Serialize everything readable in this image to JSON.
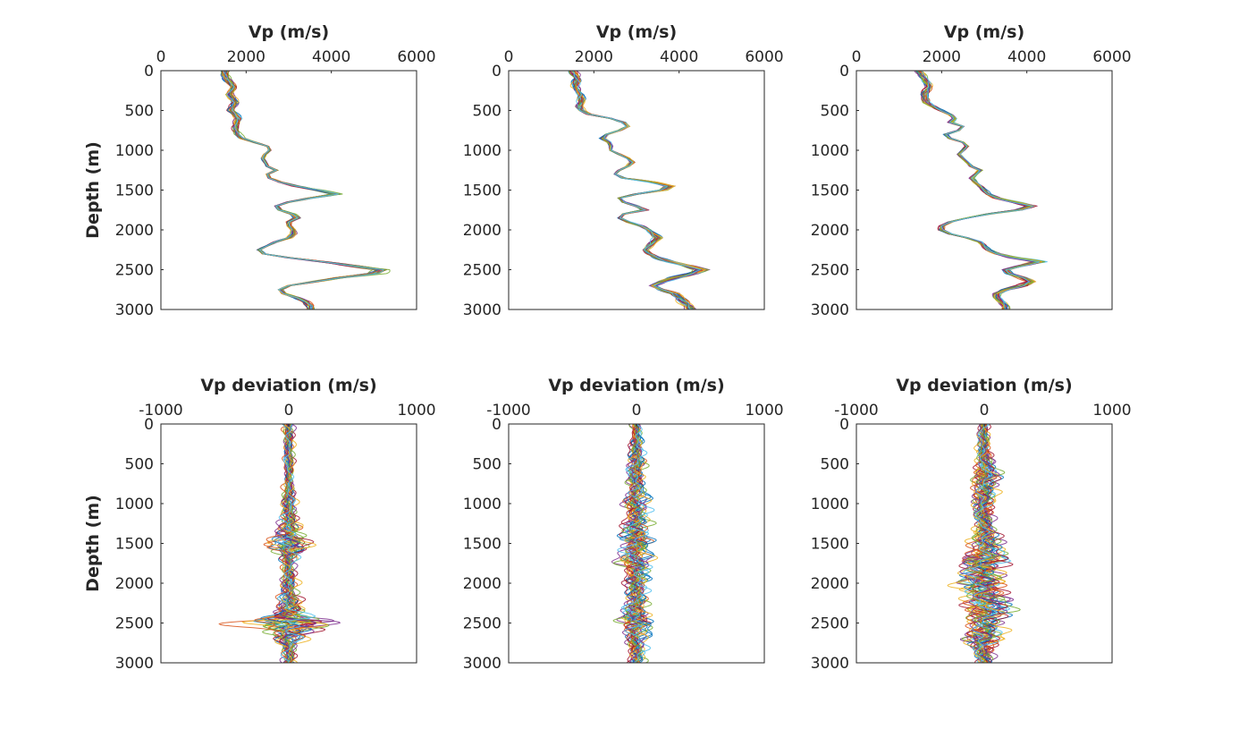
{
  "chart_data": [
    {
      "id": "vp-1",
      "type": "line",
      "orientation": "x-vs-depth",
      "title": "",
      "xlabel": "Vp (m/s)",
      "ylabel": "Depth (m)",
      "xlim": [
        0,
        6000
      ],
      "ylim": [
        0,
        3000
      ],
      "y_reversed": true,
      "x_axis_location": "top",
      "grid": false,
      "xticks": [
        0,
        2000,
        4000,
        6000
      ],
      "xtick_labels": [
        "0",
        "2000",
        "4000",
        "6000"
      ],
      "yticks": [
        0,
        500,
        1000,
        1500,
        2000,
        2500,
        3000
      ],
      "ytick_labels": [
        "0",
        "500",
        "1000",
        "1500",
        "2000",
        "2500",
        "3000"
      ],
      "series_style": "ensemble of many realizations, each a different color",
      "mean_profile": {
        "depth": [
          0,
          100,
          200,
          300,
          400,
          500,
          600,
          700,
          800,
          850,
          900,
          950,
          1000,
          1050,
          1100,
          1150,
          1200,
          1250,
          1300,
          1350,
          1400,
          1450,
          1500,
          1550,
          1600,
          1650,
          1700,
          1750,
          1800,
          1850,
          1900,
          1950,
          2000,
          2050,
          2100,
          2150,
          2200,
          2250,
          2300,
          2350,
          2400,
          2450,
          2500,
          2550,
          2600,
          2650,
          2700,
          2750,
          2800,
          2850,
          2900,
          2950,
          3000
        ],
        "vp": [
          1500,
          1550,
          1700,
          1600,
          1750,
          1650,
          1800,
          1750,
          1800,
          1900,
          2200,
          2500,
          2550,
          2450,
          2400,
          2450,
          2500,
          2700,
          2500,
          2550,
          2800,
          3200,
          3700,
          4100,
          3500,
          3000,
          2700,
          2800,
          3100,
          3200,
          3000,
          3000,
          3100,
          3100,
          3000,
          2700,
          2500,
          2300,
          2400,
          3000,
          3800,
          4500,
          5200,
          5000,
          4200,
          3600,
          3000,
          2800,
          2900,
          3200,
          3400,
          3500,
          3500
        ]
      }
    },
    {
      "id": "vp-2",
      "type": "line",
      "orientation": "x-vs-depth",
      "title": "",
      "xlabel": "Vp (m/s)",
      "ylabel": "",
      "xlim": [
        0,
        6000
      ],
      "ylim": [
        0,
        3000
      ],
      "y_reversed": true,
      "x_axis_location": "top",
      "grid": false,
      "xticks": [
        0,
        2000,
        4000,
        6000
      ],
      "xtick_labels": [
        "0",
        "2000",
        "4000",
        "6000"
      ],
      "yticks": [
        0,
        500,
        1000,
        1500,
        2000,
        2500,
        3000
      ],
      "ytick_labels": [
        "0",
        "500",
        "1000",
        "1500",
        "2000",
        "2500",
        "3000"
      ],
      "series_style": "ensemble of many realizations, each a different color",
      "mean_profile": {
        "depth": [
          0,
          100,
          200,
          300,
          400,
          450,
          500,
          550,
          600,
          650,
          700,
          750,
          800,
          850,
          900,
          950,
          1000,
          1050,
          1100,
          1150,
          1200,
          1250,
          1300,
          1350,
          1400,
          1450,
          1500,
          1550,
          1600,
          1650,
          1700,
          1750,
          1800,
          1850,
          1900,
          1950,
          2000,
          2050,
          2100,
          2150,
          2200,
          2250,
          2300,
          2350,
          2400,
          2450,
          2500,
          2550,
          2600,
          2650,
          2700,
          2750,
          2800,
          2900,
          3000
        ],
        "vp": [
          1500,
          1600,
          1550,
          1700,
          1700,
          1650,
          1700,
          1900,
          2400,
          2700,
          2800,
          2600,
          2300,
          2200,
          2350,
          2400,
          2400,
          2600,
          2800,
          2900,
          2800,
          2600,
          2500,
          2700,
          3400,
          3800,
          3600,
          3000,
          2600,
          2700,
          3000,
          3200,
          2700,
          2600,
          2800,
          3100,
          3300,
          3400,
          3500,
          3400,
          3300,
          3200,
          3300,
          3500,
          3800,
          4200,
          4500,
          4300,
          3900,
          3600,
          3400,
          3600,
          3900,
          4100,
          4300
        ]
      }
    },
    {
      "id": "vp-3",
      "type": "line",
      "orientation": "x-vs-depth",
      "title": "",
      "xlabel": "Vp (m/s)",
      "ylabel": "",
      "xlim": [
        0,
        6000
      ],
      "ylim": [
        0,
        3000
      ],
      "y_reversed": true,
      "x_axis_location": "top",
      "grid": false,
      "xticks": [
        0,
        2000,
        4000,
        6000
      ],
      "xtick_labels": [
        "0",
        "2000",
        "4000",
        "6000"
      ],
      "yticks": [
        0,
        500,
        1000,
        1500,
        2000,
        2500,
        3000
      ],
      "ytick_labels": [
        "0",
        "500",
        "1000",
        "1500",
        "2000",
        "2500",
        "3000"
      ],
      "series_style": "ensemble of many realizations, each a different color",
      "mean_profile": {
        "depth": [
          0,
          100,
          200,
          300,
          400,
          450,
          500,
          550,
          600,
          650,
          700,
          750,
          800,
          850,
          900,
          950,
          1000,
          1050,
          1100,
          1150,
          1200,
          1250,
          1300,
          1350,
          1400,
          1450,
          1500,
          1550,
          1600,
          1650,
          1700,
          1750,
          1800,
          1850,
          1900,
          1950,
          2000,
          2050,
          2100,
          2150,
          2200,
          2250,
          2300,
          2350,
          2400,
          2450,
          2500,
          2550,
          2600,
          2650,
          2700,
          2750,
          2800,
          2850,
          2900,
          2950,
          3000
        ],
        "vp": [
          1450,
          1600,
          1700,
          1600,
          1650,
          1800,
          2000,
          2200,
          2300,
          2200,
          2500,
          2400,
          2100,
          2200,
          2500,
          2600,
          2500,
          2400,
          2500,
          2600,
          2700,
          2900,
          2800,
          2700,
          2800,
          2900,
          3000,
          3100,
          3300,
          3700,
          4100,
          3800,
          3100,
          2600,
          2200,
          2000,
          2000,
          2200,
          2600,
          2900,
          3000,
          3100,
          3300,
          3700,
          4300,
          3900,
          3500,
          3600,
          3900,
          4100,
          3900,
          3500,
          3300,
          3300,
          3400,
          3500,
          3500
        ]
      }
    },
    {
      "id": "dev-1",
      "type": "line",
      "orientation": "x-vs-depth",
      "title": "",
      "xlabel": "Vp deviation (m/s)",
      "ylabel": "Depth (m)",
      "xlim": [
        -1000,
        1000
      ],
      "ylim": [
        0,
        3000
      ],
      "y_reversed": true,
      "x_axis_location": "top",
      "grid": false,
      "xticks": [
        -1000,
        0,
        1000
      ],
      "xtick_labels": [
        "-1000",
        "0",
        "1000"
      ],
      "yticks": [
        0,
        500,
        1000,
        1500,
        2000,
        2500,
        3000
      ],
      "ytick_labels": [
        "0",
        "500",
        "1000",
        "1500",
        "2000",
        "2500",
        "3000"
      ],
      "series_style": "ensemble of many realizations centred on 0, each a different color",
      "spread_envelope": {
        "depth": [
          0,
          250,
          500,
          750,
          1000,
          1150,
          1300,
          1450,
          1550,
          1650,
          1800,
          2000,
          2150,
          2300,
          2400,
          2480,
          2560,
          2650,
          2800,
          3000
        ],
        "half_width": [
          80,
          50,
          60,
          60,
          80,
          100,
          140,
          200,
          280,
          120,
          80,
          90,
          100,
          180,
          280,
          650,
          400,
          200,
          90,
          80
        ]
      }
    },
    {
      "id": "dev-2",
      "type": "line",
      "orientation": "x-vs-depth",
      "title": "",
      "xlabel": "Vp deviation (m/s)",
      "ylabel": "",
      "xlim": [
        -1000,
        1000
      ],
      "ylim": [
        0,
        3000
      ],
      "y_reversed": true,
      "x_axis_location": "top",
      "grid": false,
      "xticks": [
        -1000,
        0,
        1000
      ],
      "xtick_labels": [
        "-1000",
        "0",
        "1000"
      ],
      "yticks": [
        0,
        500,
        1000,
        1500,
        2000,
        2500,
        3000
      ],
      "ytick_labels": [
        "0",
        "500",
        "1000",
        "1500",
        "2000",
        "2500",
        "3000"
      ],
      "series_style": "ensemble of many realizations centred on 0, each a different color",
      "spread_envelope": {
        "depth": [
          0,
          250,
          500,
          750,
          1000,
          1200,
          1450,
          1600,
          1750,
          2000,
          2250,
          2500,
          2700,
          2850,
          3000
        ],
        "half_width": [
          60,
          80,
          120,
          120,
          140,
          160,
          230,
          180,
          200,
          140,
          140,
          250,
          100,
          120,
          100
        ]
      }
    },
    {
      "id": "dev-3",
      "type": "line",
      "orientation": "x-vs-depth",
      "title": "",
      "xlabel": "Vp deviation (m/s)",
      "ylabel": "",
      "xlim": [
        -1000,
        1000
      ],
      "ylim": [
        0,
        3000
      ],
      "y_reversed": true,
      "x_axis_location": "top",
      "grid": false,
      "xticks": [
        -1000,
        0,
        1000
      ],
      "xtick_labels": [
        "-1000",
        "0",
        "1000"
      ],
      "yticks": [
        0,
        500,
        1000,
        1500,
        2000,
        2500,
        3000
      ],
      "ytick_labels": [
        "0",
        "500",
        "1000",
        "1500",
        "2000",
        "2500",
        "3000"
      ],
      "series_style": "ensemble of many realizations centred on 0, each a different color",
      "spread_envelope": {
        "depth": [
          0,
          250,
          500,
          650,
          800,
          1000,
          1250,
          1450,
          1600,
          1720,
          1850,
          2000,
          2150,
          2300,
          2450,
          2550,
          2700,
          2850,
          3000
        ],
        "half_width": [
          70,
          80,
          100,
          180,
          150,
          130,
          120,
          170,
          180,
          340,
          260,
          330,
          220,
          300,
          230,
          200,
          250,
          120,
          120
        ]
      }
    }
  ],
  "series_colors": [
    "#0072BD",
    "#D95319",
    "#EDB120",
    "#7E2F8E",
    "#77AC30",
    "#4DBEEE",
    "#A2142F"
  ]
}
